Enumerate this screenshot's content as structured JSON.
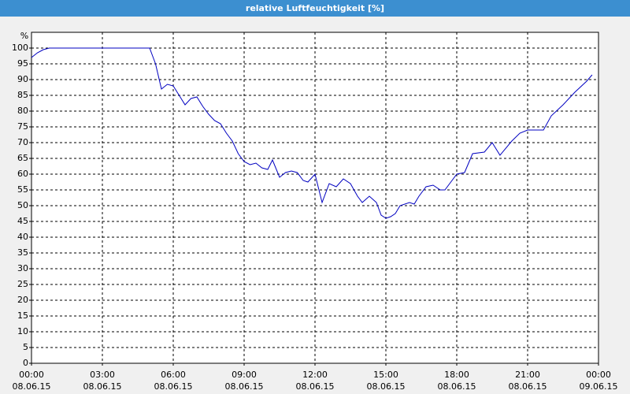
{
  "chart_data": {
    "type": "line",
    "title": "relative Luftfeuchtigkeit [%]",
    "y_unit": "%",
    "xlim": [
      0,
      24
    ],
    "ylim": [
      0,
      105
    ],
    "xticks": [
      {
        "value": 0,
        "label": "00:00"
      },
      {
        "value": 3,
        "label": "03:00"
      },
      {
        "value": 6,
        "label": "06:00"
      },
      {
        "value": 9,
        "label": "09:00"
      },
      {
        "value": 12,
        "label": "12:00"
      },
      {
        "value": 15,
        "label": "15:00"
      },
      {
        "value": 18,
        "label": "18:00"
      },
      {
        "value": 21,
        "label": "21:00"
      },
      {
        "value": 24,
        "label": "00:00"
      }
    ],
    "xtick_dates": [
      "08.06.15",
      "08.06.15",
      "08.06.15",
      "08.06.15",
      "08.06.15",
      "08.06.15",
      "08.06.15",
      "08.06.15",
      "09.06.15"
    ],
    "yticks": [
      0,
      5,
      10,
      15,
      20,
      25,
      30,
      35,
      40,
      45,
      50,
      55,
      60,
      65,
      70,
      75,
      80,
      85,
      90,
      95,
      100
    ],
    "grid": true,
    "series": [
      {
        "color": "#0000c0",
        "x": [
          0,
          0.25,
          0.5,
          0.75,
          1,
          2,
          3,
          4,
          5,
          5.25,
          5.5,
          5.75,
          6,
          6.25,
          6.5,
          6.75,
          7,
          7.25,
          7.5,
          7.75,
          8,
          8.25,
          8.5,
          8.75,
          9,
          9.25,
          9.5,
          9.75,
          10,
          10.2,
          10.5,
          10.75,
          11,
          11.25,
          11.5,
          11.7,
          12,
          12.3,
          12.6,
          12.9,
          13.2,
          13.5,
          13.8,
          14,
          14.3,
          14.6,
          14.8,
          15,
          15.2,
          15.4,
          15.6,
          16,
          16.2,
          16.4,
          16.7,
          17,
          17.3,
          17.5,
          17.8,
          18,
          18.33,
          18.67,
          19.17,
          19.5,
          19.83,
          20.33,
          20.67,
          21,
          21.67,
          22,
          22.5,
          23,
          23.5,
          23.73
        ],
        "values": [
          97,
          98.5,
          99.5,
          100,
          100,
          100,
          100,
          100,
          100,
          95,
          87,
          88.5,
          88,
          85,
          82,
          84,
          84.5,
          81.5,
          79,
          77,
          76,
          73,
          70.5,
          66.5,
          64,
          63,
          63.5,
          62,
          61.5,
          64.5,
          59,
          60.5,
          61,
          60.5,
          58,
          57.5,
          60,
          51,
          57,
          56,
          58.5,
          57,
          53,
          51,
          53,
          51,
          47,
          46,
          46.5,
          47.5,
          50,
          51,
          50.5,
          53,
          56,
          56.5,
          55,
          55,
          58,
          60,
          60.5,
          66.5,
          67,
          70,
          66,
          70.5,
          73,
          74,
          74,
          78.5,
          82,
          86,
          89.5,
          91.5
        ]
      }
    ]
  }
}
